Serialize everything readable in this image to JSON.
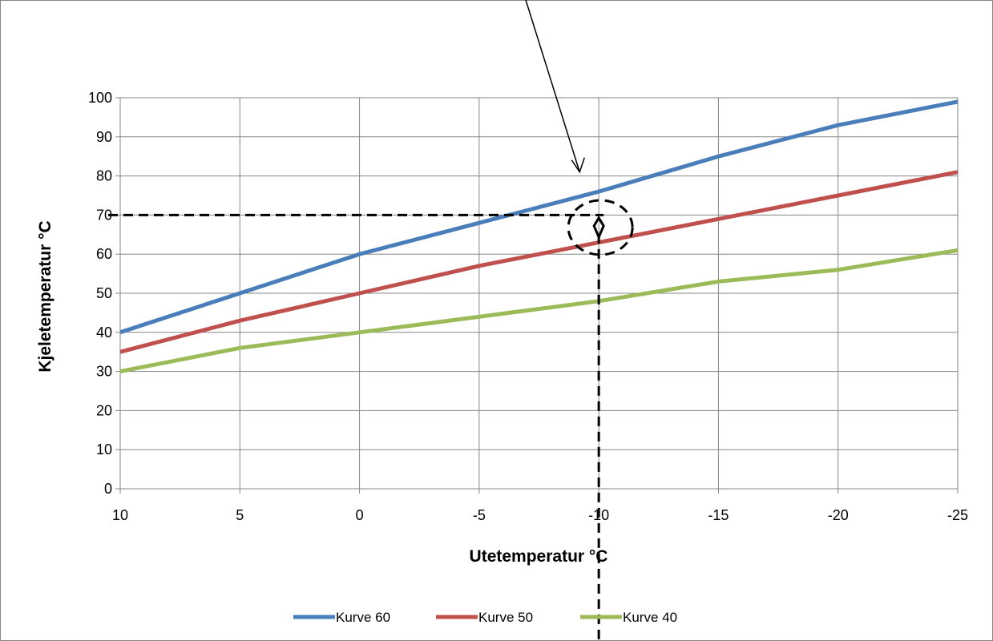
{
  "chart_data": {
    "type": "line",
    "title": "",
    "xlabel": "Utetemperatur °C",
    "ylabel": "Kjeletemperatur °C",
    "x": [
      10,
      5,
      0,
      -5,
      -10,
      -15,
      -20,
      -25
    ],
    "x_tick_labels": [
      "10",
      "5",
      "0",
      "-5",
      "-10",
      "-15",
      "-20",
      "-25"
    ],
    "xlim": [
      10,
      -25
    ],
    "ylim": [
      0,
      100
    ],
    "y_ticks": [
      0,
      10,
      20,
      30,
      40,
      50,
      60,
      70,
      80,
      90,
      100
    ],
    "y_tick_labels": [
      "0",
      "10",
      "20",
      "30",
      "40",
      "50",
      "60",
      "70",
      "80",
      "90",
      "100"
    ],
    "grid": true,
    "legend_position": "bottom",
    "series": [
      {
        "name": "Kurve 60",
        "color": "#4a7ebb",
        "values": [
          40,
          50,
          60,
          68,
          76,
          85,
          93,
          99
        ]
      },
      {
        "name": "Kurve 50",
        "color": "#c0504d",
        "values": [
          35,
          43,
          50,
          57,
          63,
          69,
          75,
          81
        ]
      },
      {
        "name": "Kurve 40",
        "color": "#9bbb59",
        "values": [
          30,
          36,
          40,
          44,
          48,
          53,
          56,
          61
        ]
      }
    ],
    "annotations": {
      "horizontal_reference_y": 70,
      "vertical_reference_x": -10,
      "highlight_point": {
        "x": -10,
        "y": 66
      },
      "arrow_target": {
        "x": -9.2,
        "y": 81
      }
    }
  }
}
